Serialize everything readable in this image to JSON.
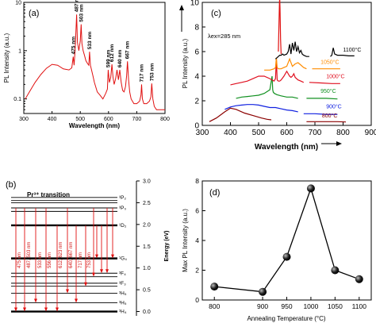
{
  "chart_data": [
    {
      "panel": "(a)",
      "type": "line",
      "xlabel": "Wavelength (nm)",
      "ylabel": "PL Intensity (a.u.)",
      "xlim": [
        300,
        800
      ],
      "ylim": [
        0.05,
        10
      ],
      "yscale": "log",
      "xticks": [
        "300",
        "400",
        "500",
        "600",
        "700",
        "800"
      ],
      "yticks": [
        {
          "v": 0.1,
          "t": "0.1"
        },
        {
          "v": 1,
          "t": "1"
        },
        {
          "v": 10,
          "t": "10"
        }
      ],
      "color": "#e01010",
      "x": [
        305,
        320,
        340,
        360,
        380,
        400,
        420,
        440,
        460,
        470,
        475,
        478,
        482,
        487,
        490,
        495,
        500,
        503,
        506,
        510,
        515,
        520,
        525,
        530,
        533,
        536,
        540,
        545,
        550,
        560,
        570,
        580,
        590,
        596,
        599,
        603,
        608,
        612,
        616,
        620,
        625,
        630,
        635,
        640,
        645,
        650,
        655,
        660,
        664,
        667,
        671,
        675,
        680,
        690,
        700,
        710,
        715,
        717,
        720,
        725,
        735,
        745,
        750,
        753,
        757,
        762,
        770,
        780,
        790,
        800
      ],
      "y": [
        0.1,
        0.14,
        0.22,
        0.32,
        0.43,
        0.52,
        0.5,
        0.42,
        0.4,
        0.44,
        0.75,
        0.5,
        1.1,
        5.6,
        1.5,
        1.0,
        1.6,
        3.5,
        1.4,
        1.0,
        0.8,
        0.62,
        0.55,
        0.5,
        0.95,
        0.5,
        0.4,
        0.3,
        0.22,
        0.14,
        0.12,
        0.1,
        0.13,
        0.16,
        0.4,
        0.22,
        0.28,
        0.52,
        0.28,
        0.2,
        0.26,
        0.4,
        0.25,
        0.4,
        0.22,
        0.15,
        0.14,
        0.18,
        0.3,
        0.6,
        0.25,
        0.14,
        0.1,
        0.08,
        0.08,
        0.09,
        0.12,
        0.2,
        0.1,
        0.08,
        0.08,
        0.09,
        0.11,
        0.21,
        0.1,
        0.07,
        0.06,
        0.06,
        0.06,
        0.06
      ],
      "annotations": [
        {
          "x": 475,
          "y": 0.75,
          "t": "475 nm",
          "dy": -3,
          "rot": -90
        },
        {
          "x": 487,
          "y": 5.6,
          "t": "487 nm",
          "dy": -3,
          "rot": -90
        },
        {
          "x": 503,
          "y": 3.5,
          "t": "503 nm",
          "dy": -3,
          "rot": -90
        },
        {
          "x": 533,
          "y": 0.95,
          "t": "533 nm",
          "dy": -3,
          "rot": -90
        },
        {
          "x": 599,
          "y": 0.4,
          "t": "599 nm",
          "dy": -3,
          "rot": -90
        },
        {
          "x": 612,
          "y": 0.52,
          "t": "612 nm",
          "dy": -3,
          "rot": -90
        },
        {
          "x": 640,
          "y": 0.4,
          "t": "640 nm",
          "dy": -3,
          "rot": -90
        },
        {
          "x": 667,
          "y": 0.6,
          "t": "667 nm",
          "dy": -3,
          "rot": -90
        },
        {
          "x": 717,
          "y": 0.2,
          "t": "717 nm",
          "dy": -3,
          "rot": -90
        },
        {
          "x": 753,
          "y": 0.21,
          "t": "753 nm",
          "dy": -3,
          "rot": -90
        }
      ]
    },
    {
      "panel": "(c)",
      "type": "line",
      "xlabel": "Wavelength (nm)",
      "ylabel": "PL Intensity (a.u.)",
      "xlim": [
        300,
        900
      ],
      "ylim": [
        0,
        10
      ],
      "xticks": [
        "300",
        "400",
        "500",
        "600",
        "700",
        "800",
        "900"
      ],
      "yticks": [
        "0",
        "2",
        "4",
        "6",
        "8",
        "10"
      ],
      "excitation_label": "λex=285 nm",
      "series": [
        {
          "name": "800°C",
          "color": "#8b0000",
          "segments": [
            {
              "x": [
                325,
                350,
                380,
                400,
                420,
                450,
                480,
                510,
                530,
                545
              ],
              "y": [
                0.3,
                0.6,
                1.1,
                1.4,
                1.3,
                1.0,
                0.8,
                0.6,
                0.5,
                0.45
              ]
            },
            {
              "x": [
                670,
                700,
                740,
                780,
                810
              ],
              "y": [
                0.3,
                0.3,
                0.3,
                0.3,
                0.28
              ]
            }
          ]
        },
        {
          "name": "900°C",
          "color": "#1020e0",
          "segments": [
            {
              "x": [
                380,
                400,
                420,
                440,
                460,
                480,
                500,
                520,
                540,
                560,
                580,
                600,
                620,
                640
              ],
              "y": [
                1.3,
                1.5,
                1.6,
                1.65,
                1.7,
                1.7,
                1.65,
                1.55,
                1.45,
                1.45,
                1.35,
                1.25,
                1.2,
                1.1
              ]
            },
            {
              "x": [
                660,
                700,
                740,
                780
              ],
              "y": [
                0.95,
                0.95,
                0.9,
                0.9
              ]
            }
          ]
        },
        {
          "name": "950°C",
          "color": "#109020",
          "segments": [
            {
              "x": [
                420,
                440,
                460,
                480,
                500,
                520,
                540,
                548,
                550,
                552,
                556,
                565,
                580,
                600,
                620,
                640
              ],
              "y": [
                2.2,
                2.3,
                2.35,
                2.4,
                2.45,
                2.6,
                2.9,
                4.0,
                2.9,
                2.7,
                2.6,
                2.5,
                2.4,
                2.3,
                2.3,
                2.2
              ]
            },
            {
              "x": [
                670,
                700,
                740,
                780
              ],
              "y": [
                2.2,
                2.2,
                2.2,
                2.15
              ]
            }
          ]
        },
        {
          "name": "1000°C",
          "color": "#e01020",
          "segments": [
            {
              "x": [
                400,
                420,
                440,
                460,
                480,
                500,
                520,
                540,
                555,
                560,
                563,
                566,
                570,
                575,
                580,
                590,
                600,
                610,
                615,
                620,
                625,
                630,
                640,
                650,
                660
              ],
              "y": [
                3.3,
                3.4,
                3.5,
                3.6,
                3.8,
                4.0,
                4.0,
                3.8,
                3.6,
                3.8,
                5.4,
                3.7,
                3.6,
                3.6,
                3.7,
                4.0,
                4.4,
                4.0,
                3.9,
                4.0,
                4.2,
                3.9,
                3.7,
                3.6,
                3.5
              ]
            },
            {
              "x": [
                680,
                720,
                760,
                790
              ],
              "y": [
                3.5,
                3.45,
                3.4,
                3.4
              ]
            }
          ]
        },
        {
          "name": "1050°C",
          "color": "#ff8c00",
          "segments": [
            {
              "x": [
                520,
                540,
                555,
                560,
                563,
                566,
                570,
                580,
                590,
                600,
                610,
                620,
                630,
                640,
                650,
                660,
                670
              ],
              "y": [
                4.5,
                4.5,
                4.6,
                4.7,
                5.5,
                4.7,
                4.6,
                4.6,
                4.7,
                4.8,
                5.4,
                4.8,
                5.0,
                5.1,
                4.9,
                4.7,
                4.6
              ]
            },
            {
              "x": [
                690,
                720,
                760,
                790
              ],
              "y": [
                4.6,
                4.6,
                4.6,
                4.6
              ]
            }
          ]
        },
        {
          "name": "1100°C",
          "color": "#000000",
          "segments": [
            {
              "x": [
                560,
                565,
                570,
                575,
                580,
                585,
                590,
                600,
                605,
                610,
                615,
                620,
                625,
                630,
                635,
                640,
                645,
                650,
                655,
                660,
                670,
                680
              ],
              "y": [
                5.4,
                5.5,
                5.6,
                5.7,
                5.7,
                5.8,
                5.7,
                5.8,
                6.0,
                6.6,
                5.8,
                6.7,
                6.1,
                6.8,
                6.0,
                6.4,
                5.9,
                6.1,
                5.8,
                5.7,
                5.6,
                5.6
              ]
            },
            {
              "x": [
                755,
                760,
                765,
                770,
                780,
                800,
                820,
                840
              ],
              "y": [
                5.6,
                5.7,
                6.3,
                5.8,
                5.7,
                5.7,
                5.65,
                5.65
              ]
            }
          ]
        },
        {
          "name": "",
          "color": "#e01010",
          "segments": [
            {
              "x": [
                570,
                572,
                574,
                575,
                576,
                578,
                580
              ],
              "y": [
                6.0,
                8.0,
                10.0,
                10.4,
                9.5,
                7.0,
                5.8
              ]
            }
          ]
        }
      ],
      "labels": [
        {
          "t": "1100°C",
          "x": 800,
          "y": 6.0,
          "color": "#000000"
        },
        {
          "t": "1050°C",
          "x": 720,
          "y": 5.0,
          "color": "#ff8c00"
        },
        {
          "t": "1000°C",
          "x": 740,
          "y": 3.85,
          "color": "#e01020"
        },
        {
          "t": "950°C",
          "x": 720,
          "y": 2.65,
          "color": "#109020"
        },
        {
          "t": "900°C",
          "x": 740,
          "y": 1.4,
          "color": "#1020e0"
        },
        {
          "t": "800°C",
          "x": 725,
          "y": 0.65,
          "color": "#8b0000"
        }
      ]
    },
    {
      "panel": "(b)",
      "type": "diagram",
      "title": "Pr³⁺ transition",
      "ylabel": "Energy (eV)",
      "ylim": [
        -0.1,
        3.0
      ],
      "yticks": [
        "0.0",
        "0.5",
        "1.0",
        "1.5",
        "2.0",
        "2.5",
        "3.0"
      ],
      "levels": [
        {
          "e": 2.62,
          "t": "³P₂",
          "bold": false
        },
        {
          "e": 2.55,
          "t": "",
          "bold": false
        },
        {
          "e": 2.5,
          "t": "",
          "bold": false
        },
        {
          "e": 2.38,
          "t": "³P₀",
          "bold": false
        },
        {
          "e": 2.3,
          "t": "",
          "bold": false
        },
        {
          "e": 1.98,
          "t": "¹D₂",
          "bold": true
        },
        {
          "e": 1.22,
          "t": "¹G₄",
          "bold": true
        },
        {
          "e": 0.88,
          "t": "³F₄",
          "bold": false
        },
        {
          "e": 0.8,
          "t": "",
          "bold": false
        },
        {
          "e": 0.65,
          "t": "³F₃",
          "bold": false
        },
        {
          "e": 0.58,
          "t": "",
          "bold": false
        },
        {
          "e": 0.42,
          "t": "³H₅",
          "bold": false
        },
        {
          "e": 0.2,
          "t": "³H₅",
          "bold": false
        },
        {
          "e": 0.0,
          "t": "³H₄",
          "bold": true
        }
      ],
      "transitions": [
        "475 nm",
        "487, 503 nm",
        "533 nm",
        "556 nm",
        "612, 623 nm",
        "640, 667 nm",
        "717 nm",
        "753 nm"
      ]
    },
    {
      "panel": "(d)",
      "type": "line",
      "xlabel": "Annealing Temperature (°C)",
      "ylabel": "Max PL Intensity (a.u.)",
      "xlim": [
        775,
        1125
      ],
      "ylim": [
        0,
        8
      ],
      "xticks": [
        "800",
        "900",
        "950",
        "1000",
        "1050",
        "1100"
      ],
      "yticks": [
        "0",
        "2",
        "4",
        "6",
        "8"
      ],
      "x": [
        800,
        900,
        950,
        1000,
        1050,
        1100
      ],
      "y": [
        0.9,
        0.55,
        2.9,
        7.5,
        2.0,
        1.4
      ]
    }
  ]
}
